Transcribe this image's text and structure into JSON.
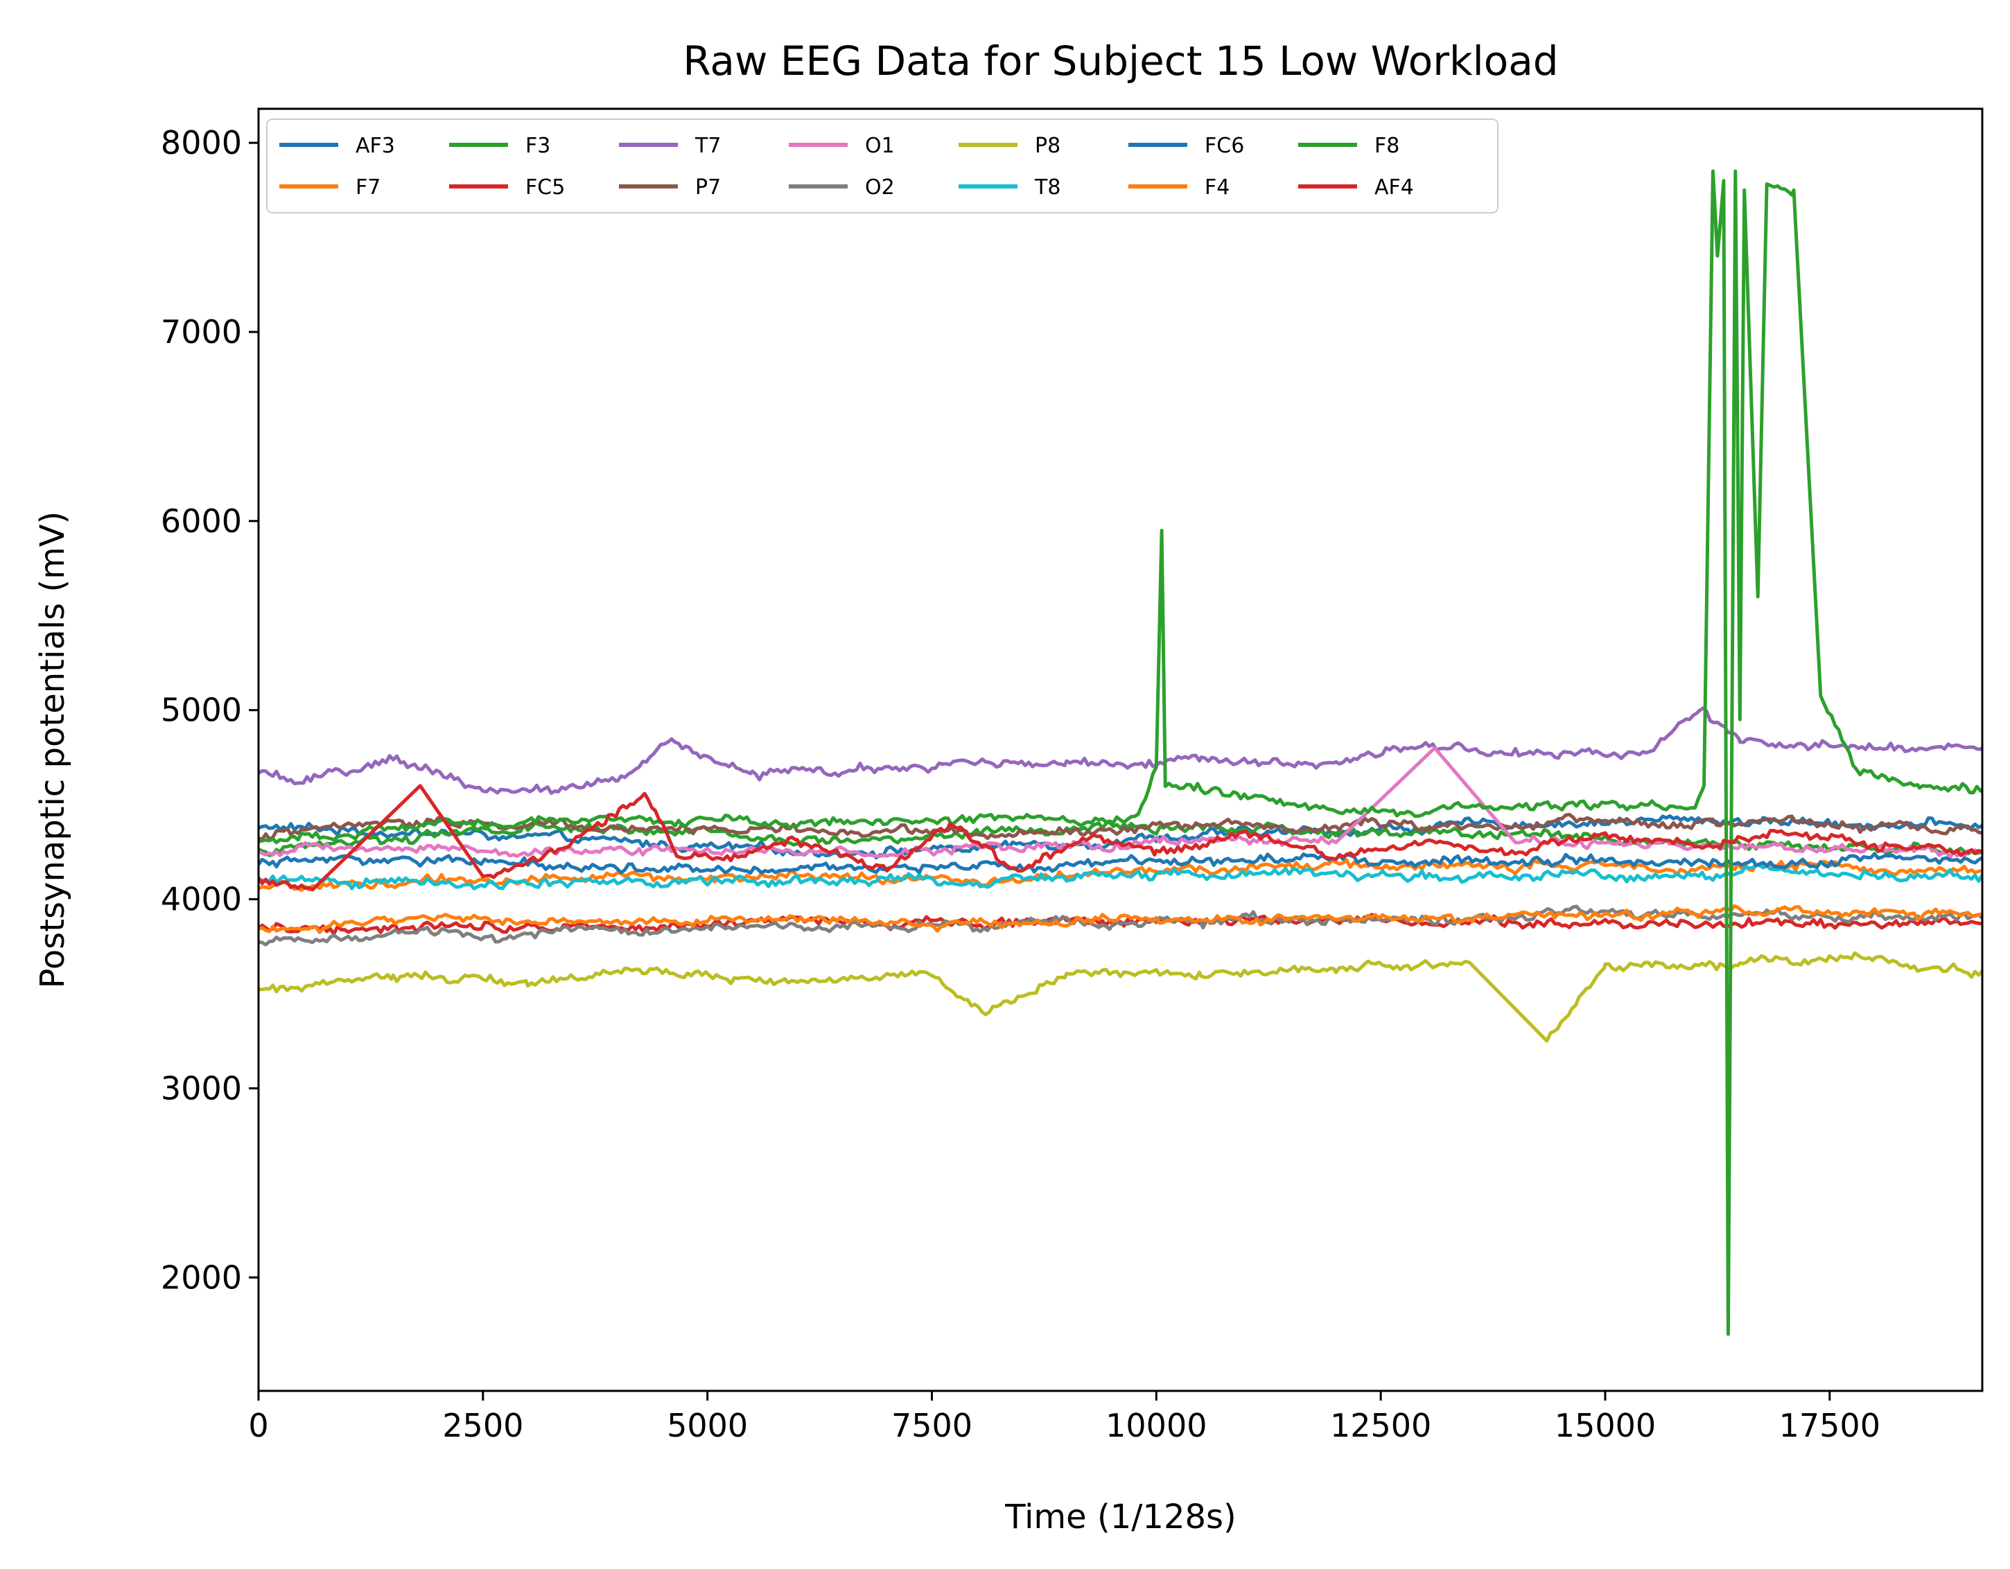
{
  "chart_data": {
    "type": "line",
    "title": "Raw EEG Data for Subject 15 Low Workload",
    "xlabel": "Time (1/128s)",
    "ylabel": "Postsynaptic potentials (mV)",
    "xlim": [
      0,
      19200
    ],
    "ylim": [
      1400,
      8180
    ],
    "xticks": [
      0,
      2500,
      5000,
      7500,
      10000,
      12500,
      15000,
      17500
    ],
    "yticks": [
      2000,
      3000,
      4000,
      5000,
      6000,
      7000,
      8000
    ],
    "xtick_labels": [
      "0",
      "2500",
      "5000",
      "7500",
      "10000",
      "12500",
      "15000",
      "17500"
    ],
    "ytick_labels": [
      "2000",
      "3000",
      "4000",
      "5000",
      "6000",
      "7000",
      "8000"
    ],
    "grid": false,
    "legend_position": "top-left",
    "legend_columns": 7,
    "series": [
      {
        "name": "AF3",
        "color": "#1f77b4",
        "x": [
          0,
          2000,
          4000,
          6000,
          8000,
          10000,
          12000,
          14000,
          16000,
          17000,
          19200
        ],
        "values": [
          4380,
          4350,
          4300,
          4250,
          4270,
          4330,
          4360,
          4400,
          4420,
          4410,
          4390
        ]
      },
      {
        "name": "F7",
        "color": "#ff7f0e",
        "x": [
          0,
          2000,
          4000,
          6000,
          8000,
          10000,
          12000,
          14000,
          16000,
          19200
        ],
        "values": [
          4050,
          4100,
          4120,
          4110,
          4100,
          4150,
          4180,
          4170,
          4180,
          4150
        ]
      },
      {
        "name": "F3",
        "color": "#2ca02c",
        "x": [
          0,
          2000,
          4000,
          6000,
          8000,
          10000,
          12000,
          14000,
          16000,
          19200
        ],
        "values": [
          4250,
          4350,
          4380,
          4300,
          4350,
          4380,
          4350,
          4350,
          4300,
          4250
        ]
      },
      {
        "name": "FC5",
        "color": "#d62728",
        "x": [
          0,
          2000,
          4000,
          6000,
          8000,
          10000,
          12000,
          14000,
          16000,
          19200
        ],
        "values": [
          3850,
          3860,
          3870,
          3880,
          3880,
          3890,
          3890,
          3880,
          3880,
          3870
        ]
      },
      {
        "name": "T7",
        "color": "#9467bd",
        "x": [
          0,
          500,
          1500,
          2500,
          4000,
          4600,
          5500,
          7500,
          9000,
          10500,
          12000,
          13000,
          14500,
          15500,
          16050,
          16500,
          17500,
          18500,
          19200
        ],
        "values": [
          4660,
          4620,
          4740,
          4570,
          4620,
          4820,
          4660,
          4700,
          4720,
          4750,
          4720,
          4800,
          4760,
          4760,
          5000,
          4820,
          4810,
          4790,
          4800
        ]
      },
      {
        "name": "P7",
        "color": "#8c564b",
        "x": [
          0,
          2000,
          4000,
          6000,
          8000,
          10000,
          12000,
          14000,
          16000,
          17000,
          19200
        ],
        "values": [
          4330,
          4420,
          4380,
          4360,
          4350,
          4380,
          4390,
          4400,
          4410,
          4420,
          4350
        ]
      },
      {
        "name": "O1",
        "color": "#e377c2",
        "x": [
          0,
          2000,
          4000,
          6000,
          8000,
          10000,
          12000,
          13100,
          14000,
          16000,
          19200
        ],
        "values": [
          4250,
          4270,
          4260,
          4250,
          4270,
          4290,
          4300,
          4800,
          4300,
          4280,
          4250
        ]
      },
      {
        "name": "O2",
        "color": "#7f7f7f",
        "x": [
          0,
          2000,
          4000,
          6000,
          8000,
          10000,
          12000,
          14000,
          16000,
          19200
        ],
        "values": [
          3790,
          3820,
          3830,
          3850,
          3870,
          3880,
          3890,
          3910,
          3920,
          3900
        ]
      },
      {
        "name": "P8",
        "color": "#bcbd22",
        "x": [
          0,
          1500,
          3000,
          4500,
          6000,
          7500,
          8100,
          9000,
          10500,
          12000,
          13500,
          14350,
          15000,
          16500,
          18000,
          19200
        ],
        "values": [
          3530,
          3600,
          3570,
          3640,
          3560,
          3600,
          3400,
          3620,
          3600,
          3630,
          3660,
          3250,
          3640,
          3650,
          3690,
          3620
        ]
      },
      {
        "name": "T8",
        "color": "#17becf",
        "x": [
          0,
          2000,
          4000,
          6000,
          8000,
          10000,
          12000,
          14000,
          16000,
          19200
        ],
        "values": [
          4100,
          4080,
          4090,
          4100,
          4100,
          4120,
          4130,
          4120,
          4140,
          4130
        ]
      },
      {
        "name": "FC6",
        "color": "#1f77b4",
        "x": [
          0,
          2000,
          4000,
          6000,
          8000,
          10000,
          12000,
          14000,
          16000,
          19200
        ],
        "values": [
          4200,
          4200,
          4180,
          4150,
          4180,
          4200,
          4210,
          4200,
          4200,
          4220
        ]
      },
      {
        "name": "F4",
        "color": "#ff7f0e",
        "x": [
          0,
          2000,
          4000,
          6000,
          8000,
          10000,
          12000,
          14000,
          16000,
          19200
        ],
        "values": [
          3850,
          3900,
          3880,
          3900,
          3880,
          3890,
          3900,
          3920,
          3930,
          3920
        ]
      },
      {
        "name": "F8",
        "color": "#2ca02c",
        "x": [
          0,
          2000,
          4000,
          6000,
          8000,
          9800,
          10000,
          10060,
          10100,
          12000,
          14000,
          16000,
          16100,
          16200,
          16250,
          16320,
          16370,
          16450,
          16500,
          16550,
          16700,
          16800,
          17100,
          17400,
          17800,
          18500,
          19200
        ],
        "values": [
          4300,
          4400,
          4420,
          4400,
          4430,
          4420,
          4700,
          5950,
          4600,
          4480,
          4480,
          4500,
          4600,
          7850,
          7400,
          7800,
          1700,
          7850,
          4950,
          7750,
          5600,
          7800,
          7750,
          5100,
          4700,
          4600,
          4570
        ]
      },
      {
        "name": "AF4",
        "color": "#d62728",
        "x": [
          0,
          600,
          1800,
          2500,
          3300,
          4300,
          4700,
          5300,
          6000,
          7000,
          7700,
          8500,
          9300,
          10000,
          11000,
          12000,
          13000,
          14000,
          15000,
          16000,
          17000,
          18000,
          19200
        ],
        "values": [
          4100,
          4050,
          4600,
          4100,
          4250,
          4550,
          4200,
          4200,
          4300,
          4150,
          4400,
          4150,
          4350,
          4250,
          4350,
          4200,
          4300,
          4250,
          4350,
          4300,
          4350,
          4300,
          4250
        ]
      }
    ]
  }
}
